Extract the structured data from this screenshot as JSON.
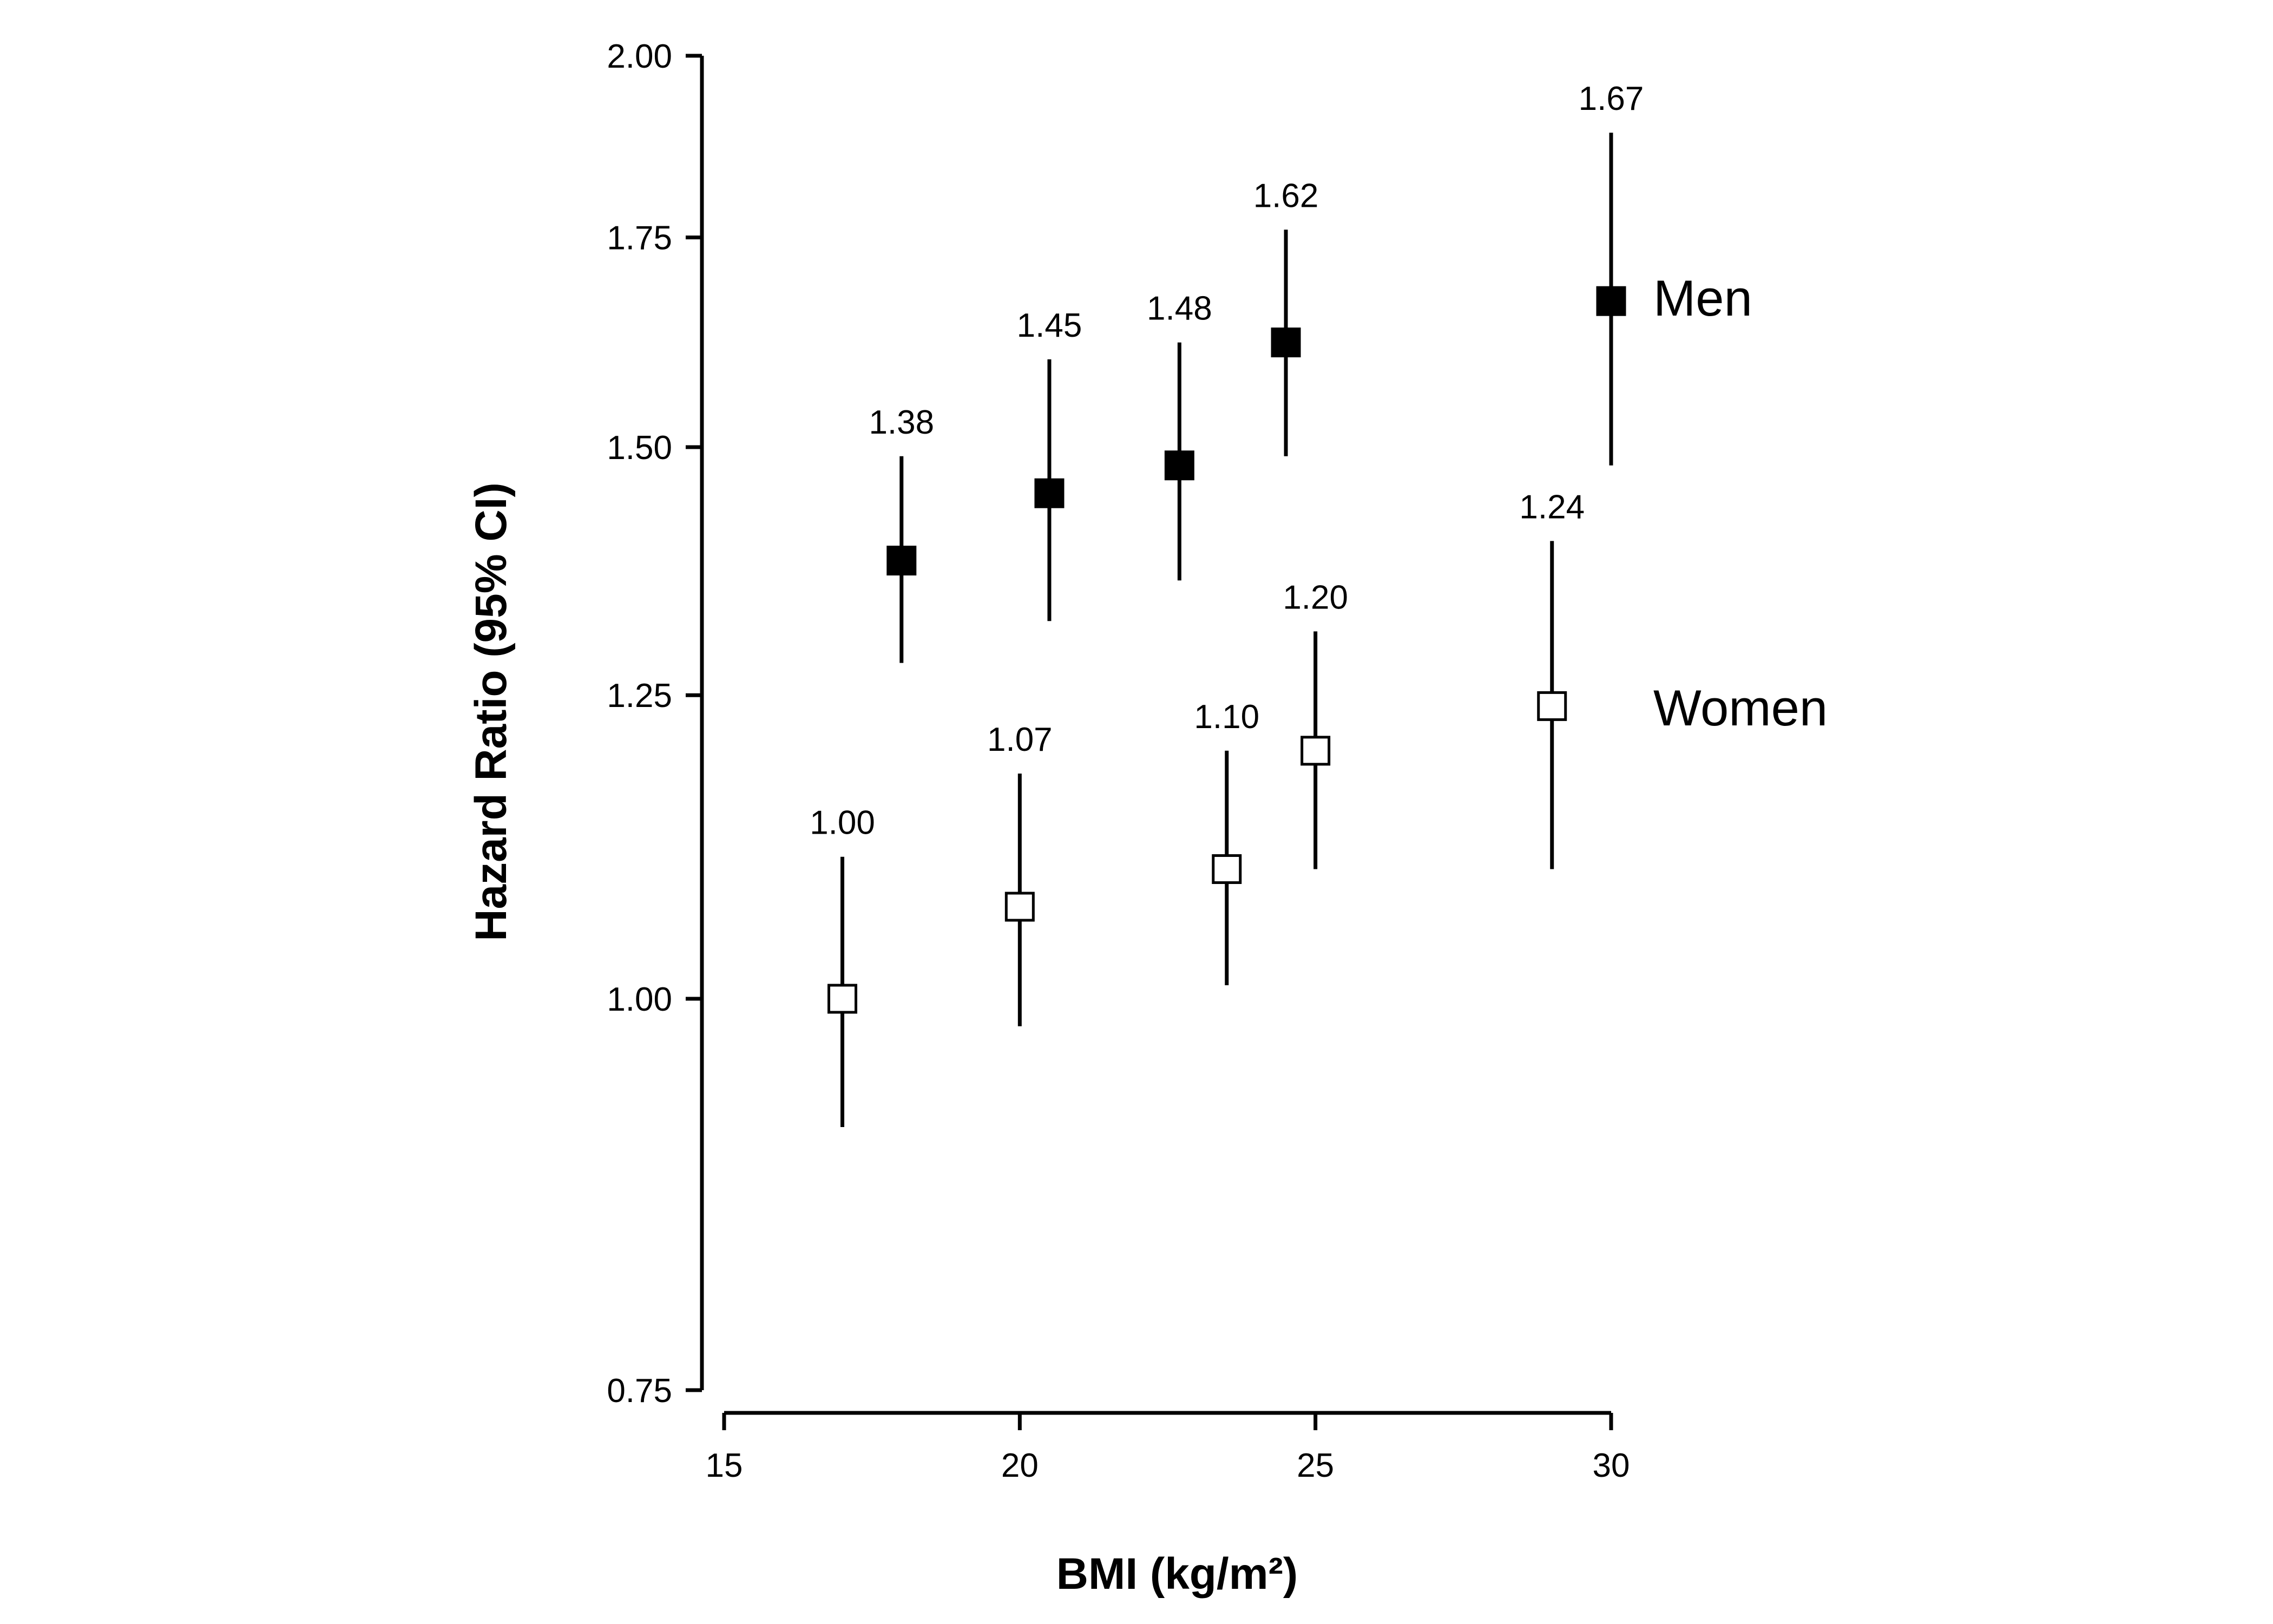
{
  "chart_data": {
    "type": "scatter",
    "title": "",
    "xlabel": "BMI (kg/m²)",
    "ylabel": "Hazard Ratio (95% CI)",
    "x_ticks": [
      "15",
      "20",
      "25",
      "30"
    ],
    "y_ticks": [
      "0.75",
      "1.00",
      "1.25",
      "1.50",
      "1.75",
      "2.00"
    ],
    "xlim": [
      15,
      30
    ],
    "ylim": [
      0.75,
      2.0
    ],
    "y_scale": "log",
    "series": [
      {
        "name": "Men",
        "marker": "filled-square",
        "points": [
          {
            "x": 18.0,
            "y": 1.38,
            "lower": 1.28,
            "upper": 1.49,
            "label": "1.38"
          },
          {
            "x": 20.5,
            "y": 1.45,
            "lower": 1.32,
            "upper": 1.6,
            "label": "1.45"
          },
          {
            "x": 22.7,
            "y": 1.48,
            "lower": 1.36,
            "upper": 1.62,
            "label": "1.48"
          },
          {
            "x": 24.5,
            "y": 1.62,
            "lower": 1.49,
            "upper": 1.76,
            "label": "1.62"
          },
          {
            "x": 30.0,
            "y": 1.67,
            "lower": 1.48,
            "upper": 1.89,
            "label": "1.67"
          }
        ]
      },
      {
        "name": "Women",
        "marker": "open-square",
        "points": [
          {
            "x": 17.0,
            "y": 1.0,
            "lower": 0.91,
            "upper": 1.11,
            "label": "1.00"
          },
          {
            "x": 20.0,
            "y": 1.07,
            "lower": 0.98,
            "upper": 1.18,
            "label": "1.07"
          },
          {
            "x": 23.5,
            "y": 1.1,
            "lower": 1.01,
            "upper": 1.2,
            "label": "1.10"
          },
          {
            "x": 25.0,
            "y": 1.2,
            "lower": 1.1,
            "upper": 1.31,
            "label": "1.20"
          },
          {
            "x": 29.0,
            "y": 1.24,
            "lower": 1.1,
            "upper": 1.4,
            "label": "1.24"
          }
        ]
      }
    ]
  }
}
